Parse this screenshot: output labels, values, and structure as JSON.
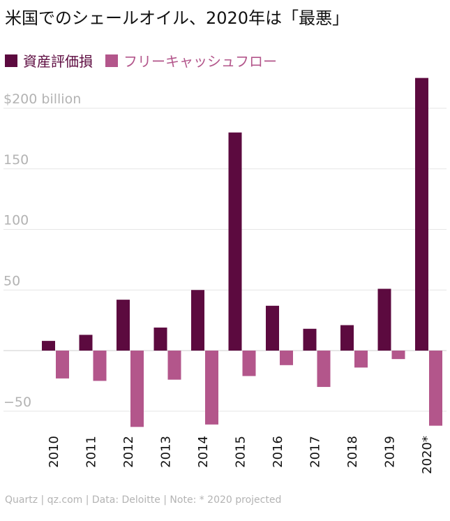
{
  "colors": {
    "asset_impairment": "#5c0a3f",
    "free_cash_flow": "#b3568b",
    "grid": "#e6e6e6",
    "axis_text": "#b3b3b3"
  },
  "footer": "Quartz | qz.com | Data: Deloitte | Note: * 2020 projected",
  "chart_data": {
    "type": "bar",
    "title": "米国でのシェールオイル、2020年は「最悪」",
    "xlabel": "",
    "ylabel": "",
    "categories": [
      "2010",
      "2011",
      "2012",
      "2013",
      "2014",
      "2015",
      "2016",
      "2017",
      "2018",
      "2019",
      "2020*"
    ],
    "series": [
      {
        "name": "資産評価損",
        "values": [
          8,
          13,
          42,
          19,
          50,
          180,
          37,
          18,
          21,
          51,
          225
        ]
      },
      {
        "name": "フリーキャッシュフロー",
        "values": [
          -23,
          -25,
          -63,
          -24,
          -61,
          -21,
          -12,
          -30,
          -14,
          -7,
          -62
        ]
      }
    ],
    "y_ticks": [
      {
        "value": 200,
        "label": "$200 billion"
      },
      {
        "value": 150,
        "label": "150"
      },
      {
        "value": 100,
        "label": "100"
      },
      {
        "value": 50,
        "label": "50"
      },
      {
        "value": -50,
        "label": "−50"
      }
    ],
    "ylim": [
      -65,
      225
    ],
    "grid": true,
    "legend": "top-left"
  }
}
